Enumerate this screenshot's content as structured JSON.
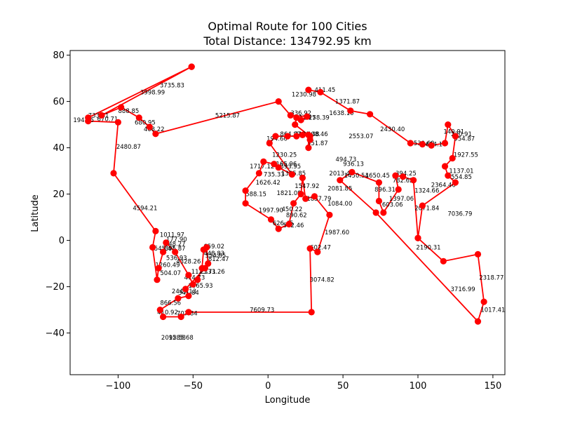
{
  "chart_data": {
    "type": "line",
    "title": "Optimal Route for 100 Cities",
    "subtitle": "Total Distance: 134792.95 km",
    "xlabel": "Longitude",
    "ylabel": "Latitude",
    "xlim": [
      -132,
      158
    ],
    "ylim": [
      -58,
      82
    ],
    "x_ticks": [
      -100,
      -50,
      0,
      50,
      100,
      150
    ],
    "y_ticks": [
      -40,
      -20,
      0,
      20,
      40,
      60,
      80
    ],
    "x_tick_labels": [
      "−100",
      "−50",
      "0",
      "50",
      "100",
      "150"
    ],
    "y_tick_labels": [
      "−40",
      "−20",
      "0",
      "20",
      "40",
      "60",
      "80"
    ],
    "grid": false,
    "series_color": "#ff0000",
    "route": [
      [
        -51,
        75
      ],
      [
        -120,
        53
      ],
      [
        -120,
        51.5
      ],
      [
        -100,
        51
      ],
      [
        -103,
        29
      ],
      [
        -75,
        4
      ],
      [
        -77,
        -3
      ],
      [
        -74,
        -17
      ],
      [
        -73,
        -12
      ],
      [
        -70,
        -5
      ],
      [
        -68,
        -1
      ],
      [
        -62,
        -5
      ],
      [
        -53,
        -15
      ],
      [
        -50,
        -19
      ],
      [
        -47,
        -17
      ],
      [
        -44,
        -12
      ],
      [
        -43,
        -4
      ],
      [
        -41,
        -3
      ],
      [
        -40,
        -10
      ],
      [
        -42,
        -12
      ],
      [
        -55,
        -21
      ],
      [
        -53,
        -24
      ],
      [
        -60,
        -25
      ],
      [
        -72,
        -30
      ],
      [
        -70,
        -33
      ],
      [
        -58,
        -33
      ],
      [
        -53,
        -31
      ],
      [
        29,
        -31
      ],
      [
        28,
        -3.5
      ],
      [
        33,
        -5
      ],
      [
        41,
        11
      ],
      [
        31,
        19
      ],
      [
        25,
        18
      ],
      [
        23,
        27
      ],
      [
        22,
        20
      ],
      [
        17,
        16
      ],
      [
        14,
        7
      ],
      [
        7,
        5
      ],
      [
        2,
        9
      ],
      [
        -15,
        16
      ],
      [
        -15,
        21.5
      ],
      [
        -6,
        29
      ],
      [
        -3,
        34
      ],
      [
        4,
        33
      ],
      [
        7,
        31.5
      ],
      [
        16,
        28.5
      ],
      [
        1,
        42
      ],
      [
        5,
        45
      ],
      [
        13,
        45
      ],
      [
        19,
        45
      ],
      [
        23,
        45.5
      ],
      [
        27,
        45.5
      ],
      [
        27,
        40
      ],
      [
        28,
        43.5
      ],
      [
        28,
        45
      ],
      [
        18,
        50
      ],
      [
        19,
        53
      ],
      [
        22,
        52
      ],
      [
        26,
        53.5
      ],
      [
        15,
        54
      ],
      [
        7,
        60
      ],
      [
        -75,
        46
      ],
      [
        -79,
        49
      ],
      [
        -86,
        53
      ],
      [
        -98,
        57.5
      ],
      [
        -111,
        54
      ],
      [
        -51,
        75
      ]
    ],
    "route_2": [
      [
        27,
        65
      ],
      [
        35,
        64
      ],
      [
        55,
        56
      ],
      [
        68,
        54.5
      ],
      [
        95,
        42
      ],
      [
        103,
        41.5
      ],
      [
        109,
        41
      ],
      [
        118,
        42
      ],
      [
        120,
        50
      ],
      [
        125,
        45
      ],
      [
        123,
        35.5
      ],
      [
        118,
        32
      ],
      [
        120,
        28
      ],
      [
        125,
        25
      ],
      [
        103,
        15
      ],
      [
        100,
        1
      ],
      [
        117,
        -9
      ],
      [
        140,
        -6
      ],
      [
        144,
        -26.5
      ],
      [
        140,
        -35
      ],
      [
        72,
        12
      ],
      [
        48,
        26
      ],
      [
        56,
        29.5
      ],
      [
        74,
        25
      ],
      [
        74,
        17
      ],
      [
        77,
        12
      ],
      [
        87,
        22
      ],
      [
        85,
        28
      ],
      [
        90,
        27.5
      ],
      [
        97,
        26
      ],
      [
        100,
        1
      ]
    ],
    "edge_labels": [
      {
        "text": "3735.83",
        "x": -64,
        "y": 67
      },
      {
        "text": "3998.99",
        "x": -77,
        "y": 64
      },
      {
        "text": "1230.98",
        "x": 24,
        "y": 63
      },
      {
        "text": "411.45",
        "x": 38,
        "y": 65
      },
      {
        "text": "1371.87",
        "x": 53,
        "y": 60
      },
      {
        "text": "733.61",
        "x": -113,
        "y": 54
      },
      {
        "text": "194.15",
        "x": -123,
        "y": 52
      },
      {
        "text": "670.71",
        "x": -107,
        "y": 52.5
      },
      {
        "text": "888.85",
        "x": -93,
        "y": 56
      },
      {
        "text": "680.95",
        "x": -82,
        "y": 51
      },
      {
        "text": "468.22",
        "x": -76,
        "y": 48
      },
      {
        "text": "5215.87",
        "x": -27,
        "y": 54
      },
      {
        "text": "1638.10",
        "x": 49,
        "y": 55
      },
      {
        "text": "336.92",
        "x": 22,
        "y": 55
      },
      {
        "text": "311.17",
        "x": 25,
        "y": 53
      },
      {
        "text": "258.39",
        "x": 34,
        "y": 53
      },
      {
        "text": "864.87",
        "x": 15,
        "y": 46
      },
      {
        "text": "194.60",
        "x": 6,
        "y": 44
      },
      {
        "text": "2123.48",
        "x": 26,
        "y": 46
      },
      {
        "text": "408.46",
        "x": 33,
        "y": 46
      },
      {
        "text": "351.87",
        "x": 33,
        "y": 42
      },
      {
        "text": "2553.07",
        "x": 62,
        "y": 45
      },
      {
        "text": "2430.40",
        "x": 83,
        "y": 48
      },
      {
        "text": "530.60",
        "x": 104,
        "y": 42
      },
      {
        "text": "654.10",
        "x": 112,
        "y": 41.5
      },
      {
        "text": "140.91",
        "x": 124,
        "y": 47
      },
      {
        "text": "230.91",
        "x": 129,
        "y": 46
      },
      {
        "text": "954.87",
        "x": 131,
        "y": 44
      },
      {
        "text": "1927.55",
        "x": 132,
        "y": 37
      },
      {
        "text": "2480.87",
        "x": -93,
        "y": 40.5
      },
      {
        "text": "1230.25",
        "x": 11,
        "y": 37
      },
      {
        "text": "494.73",
        "x": 52,
        "y": 35
      },
      {
        "text": "936.13",
        "x": 57,
        "y": 33
      },
      {
        "text": "1717.12",
        "x": -4,
        "y": 32
      },
      {
        "text": "1165.96",
        "x": 11,
        "y": 33
      },
      {
        "text": "393.95",
        "x": 15,
        "y": 32
      },
      {
        "text": "735.33",
        "x": 4,
        "y": 28.5
      },
      {
        "text": "1385.85",
        "x": 17,
        "y": 29
      },
      {
        "text": "2013.45",
        "x": 49,
        "y": 29
      },
      {
        "text": "1450.54",
        "x": 59,
        "y": 28
      },
      {
        "text": "1650.45",
        "x": 73,
        "y": 28
      },
      {
        "text": "394.25",
        "x": 92,
        "y": 29
      },
      {
        "text": "782.62",
        "x": 90,
        "y": 26
      },
      {
        "text": "1137.01",
        "x": 129,
        "y": 30
      },
      {
        "text": "554.85",
        "x": 129,
        "y": 27.5
      },
      {
        "text": "2364.40",
        "x": 117,
        "y": 24
      },
      {
        "text": "1626.42",
        "x": 0,
        "y": 25
      },
      {
        "text": "1547.92",
        "x": 26,
        "y": 23.5
      },
      {
        "text": "2081.85",
        "x": 48,
        "y": 22.5
      },
      {
        "text": "896.31",
        "x": 78,
        "y": 22
      },
      {
        "text": "1324.66",
        "x": 106,
        "y": 21.5
      },
      {
        "text": "588.15",
        "x": -8,
        "y": 20
      },
      {
        "text": "1821.09",
        "x": 14,
        "y": 20.5
      },
      {
        "text": "1857.79",
        "x": 34,
        "y": 18
      },
      {
        "text": "1397.06",
        "x": 89,
        "y": 18
      },
      {
        "text": "1084.00",
        "x": 48,
        "y": 16
      },
      {
        "text": "603.06",
        "x": 83,
        "y": 15.5
      },
      {
        "text": "2071.84",
        "x": 106,
        "y": 14
      },
      {
        "text": "4594.21",
        "x": -82,
        "y": 14
      },
      {
        "text": "1997.90",
        "x": 2,
        "y": 13
      },
      {
        "text": "450.22",
        "x": 16,
        "y": 13.5
      },
      {
        "text": "890.62",
        "x": 19,
        "y": 11
      },
      {
        "text": "7036.79",
        "x": 128,
        "y": 11.5
      },
      {
        "text": "626.45",
        "x": 10,
        "y": 7.5
      },
      {
        "text": "542.46",
        "x": 17,
        "y": 6.5
      },
      {
        "text": "1987.60",
        "x": 46,
        "y": 3.5
      },
      {
        "text": "1011.97",
        "x": -64,
        "y": 2.5
      },
      {
        "text": "177.90",
        "x": -61,
        "y": 0.5
      },
      {
        "text": "848.27",
        "x": -62,
        "y": -1.5
      },
      {
        "text": "545.47",
        "x": -69,
        "y": -3.5
      },
      {
        "text": "895.87",
        "x": -62,
        "y": -3.5
      },
      {
        "text": "659.02",
        "x": -36,
        "y": -2.5
      },
      {
        "text": "602.47",
        "x": 35,
        "y": -3
      },
      {
        "text": "2190.31",
        "x": 107,
        "y": -3
      },
      {
        "text": "448.83",
        "x": -36,
        "y": -5.5
      },
      {
        "text": "354.85",
        "x": -35,
        "y": -6.5
      },
      {
        "text": "812.47",
        "x": -33,
        "y": -8
      },
      {
        "text": "536.93",
        "x": -61,
        "y": -7.5
      },
      {
        "text": "4328.26",
        "x": -53,
        "y": -9
      },
      {
        "text": "1260.49",
        "x": -67,
        "y": -10.5
      },
      {
        "text": "504.07",
        "x": -65,
        "y": -14
      },
      {
        "text": "1125.71",
        "x": -43,
        "y": -13.5
      },
      {
        "text": "2333.26",
        "x": -37,
        "y": -13.5
      },
      {
        "text": "474.73",
        "x": -49,
        "y": -16
      },
      {
        "text": "3074.82",
        "x": 36,
        "y": -17
      },
      {
        "text": "2318.77",
        "x": 149,
        "y": -16
      },
      {
        "text": "1065.93",
        "x": -45,
        "y": -19.5
      },
      {
        "text": "3716.99",
        "x": 130,
        "y": -21
      },
      {
        "text": "2449.13",
        "x": -56,
        "y": -22
      },
      {
        "text": "341.84",
        "x": -53,
        "y": -22.5
      },
      {
        "text": "866.56",
        "x": -65,
        "y": -27
      },
      {
        "text": "410.92",
        "x": -67,
        "y": -31
      },
      {
        "text": "707.84",
        "x": -54,
        "y": -31.5
      },
      {
        "text": "7609.73",
        "x": -4,
        "y": -30
      },
      {
        "text": "1017.41",
        "x": 150,
        "y": -30
      },
      {
        "text": "2095.58",
        "x": -63,
        "y": -42
      },
      {
        "text": "1285.68",
        "x": -58,
        "y": -42
      }
    ]
  }
}
